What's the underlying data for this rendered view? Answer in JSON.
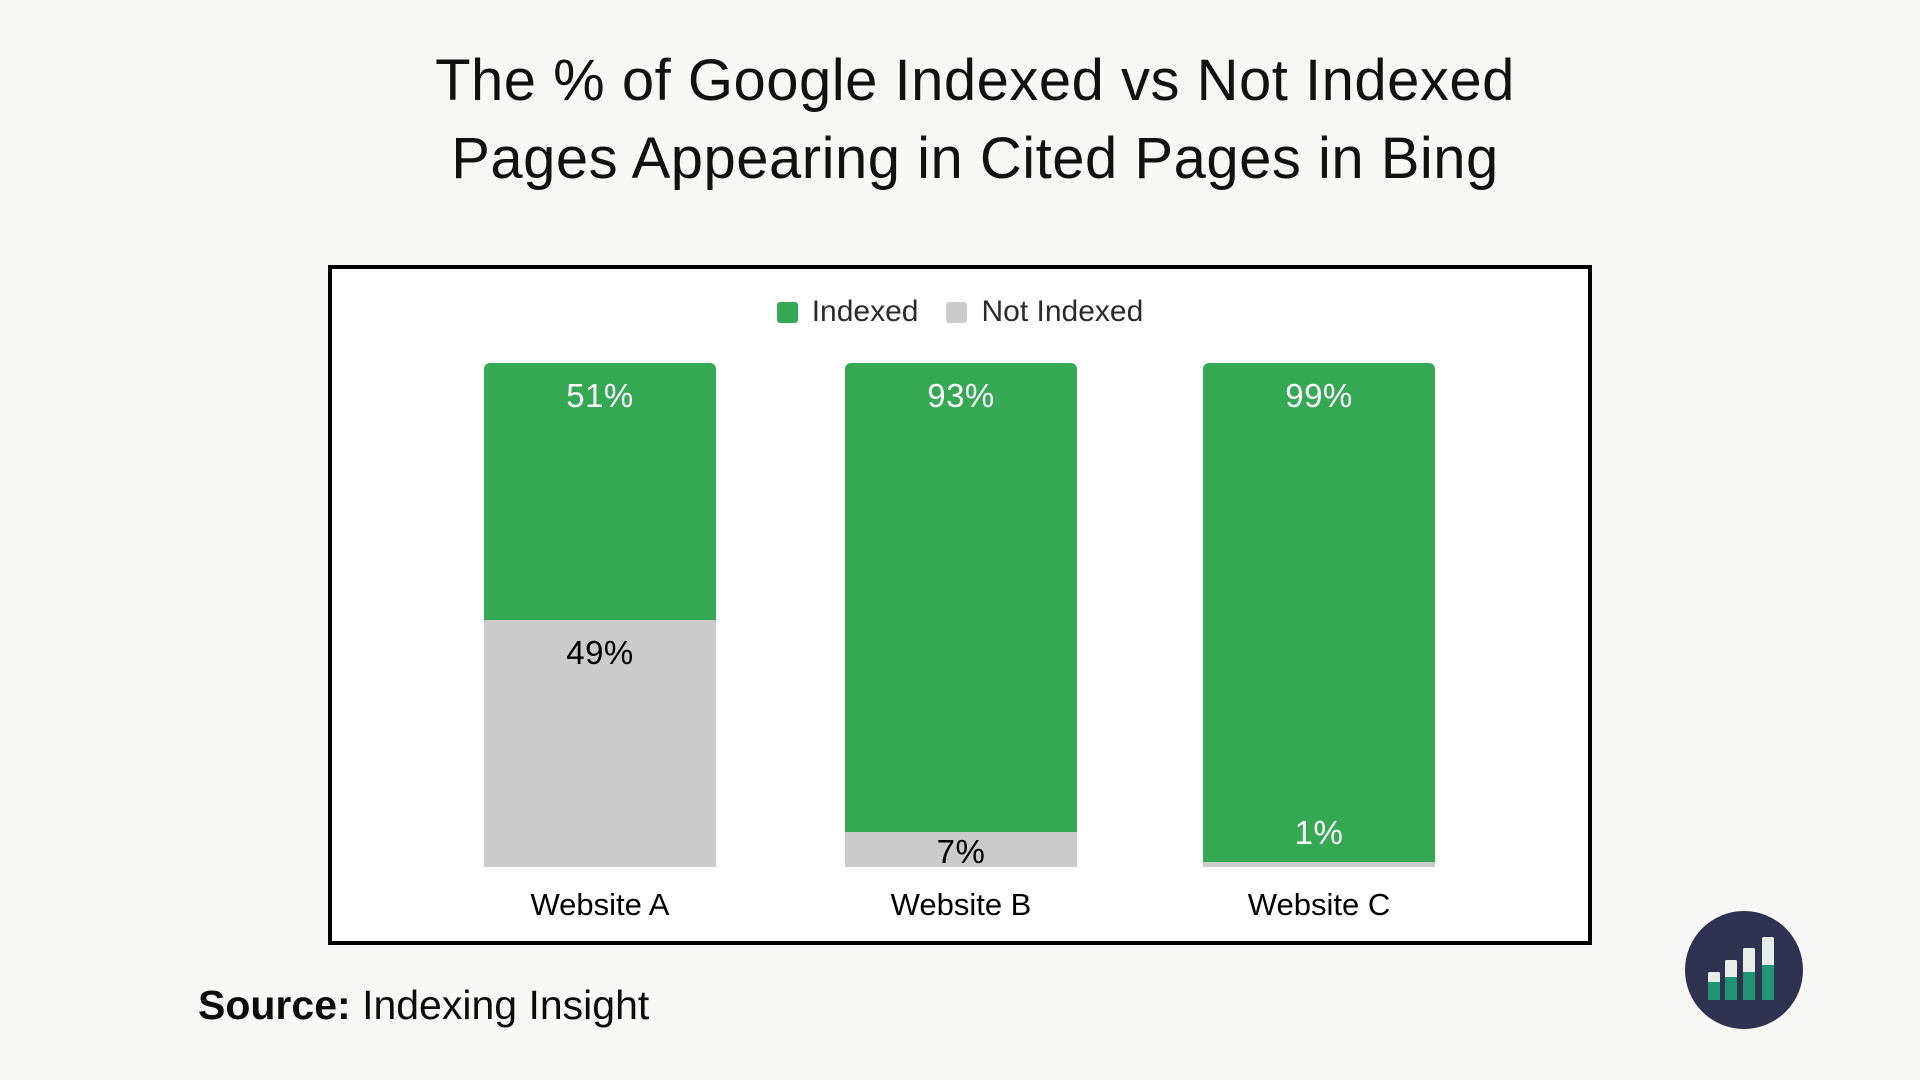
{
  "title": {
    "line1": "The % of Google Indexed vs Not Indexed",
    "line2": "Pages Appearing in Cited Pages in Bing"
  },
  "legend": [
    {
      "label": "Indexed",
      "color": "#34a853"
    },
    {
      "label": "Not Indexed",
      "color": "#cbcbcb"
    }
  ],
  "chart_data": {
    "type": "bar",
    "stacked": true,
    "title": "The % of Google Indexed vs Not Indexed Pages Appearing in Cited Pages in Bing",
    "categories": [
      "Website A",
      "Website B",
      "Website C"
    ],
    "series": [
      {
        "name": "Indexed",
        "color": "#34a853",
        "label_color": "#ffffff",
        "values": [
          51,
          93,
          99
        ]
      },
      {
        "name": "Not Indexed",
        "color": "#cbcbcb",
        "label_color": "#000000",
        "values": [
          49,
          7,
          1
        ]
      }
    ],
    "value_suffix": "%",
    "ylim": [
      0,
      100
    ],
    "grid": false,
    "legend_position": "top",
    "xlabel": "",
    "ylabel": ""
  },
  "source": {
    "label": "Source:",
    "value": "Indexing Insight"
  },
  "logo": {
    "name": "indexing-insight-logo",
    "circle_color": "#2e3150",
    "bar_bottom_color": "#1f9673",
    "bar_top_color": "#e7ece8"
  },
  "colors": {
    "background": "#f7f7f6",
    "chart_border": "#000000",
    "bar_green": "#34a853",
    "bar_gray": "#cbcbcb",
    "title_text": "#111111"
  }
}
